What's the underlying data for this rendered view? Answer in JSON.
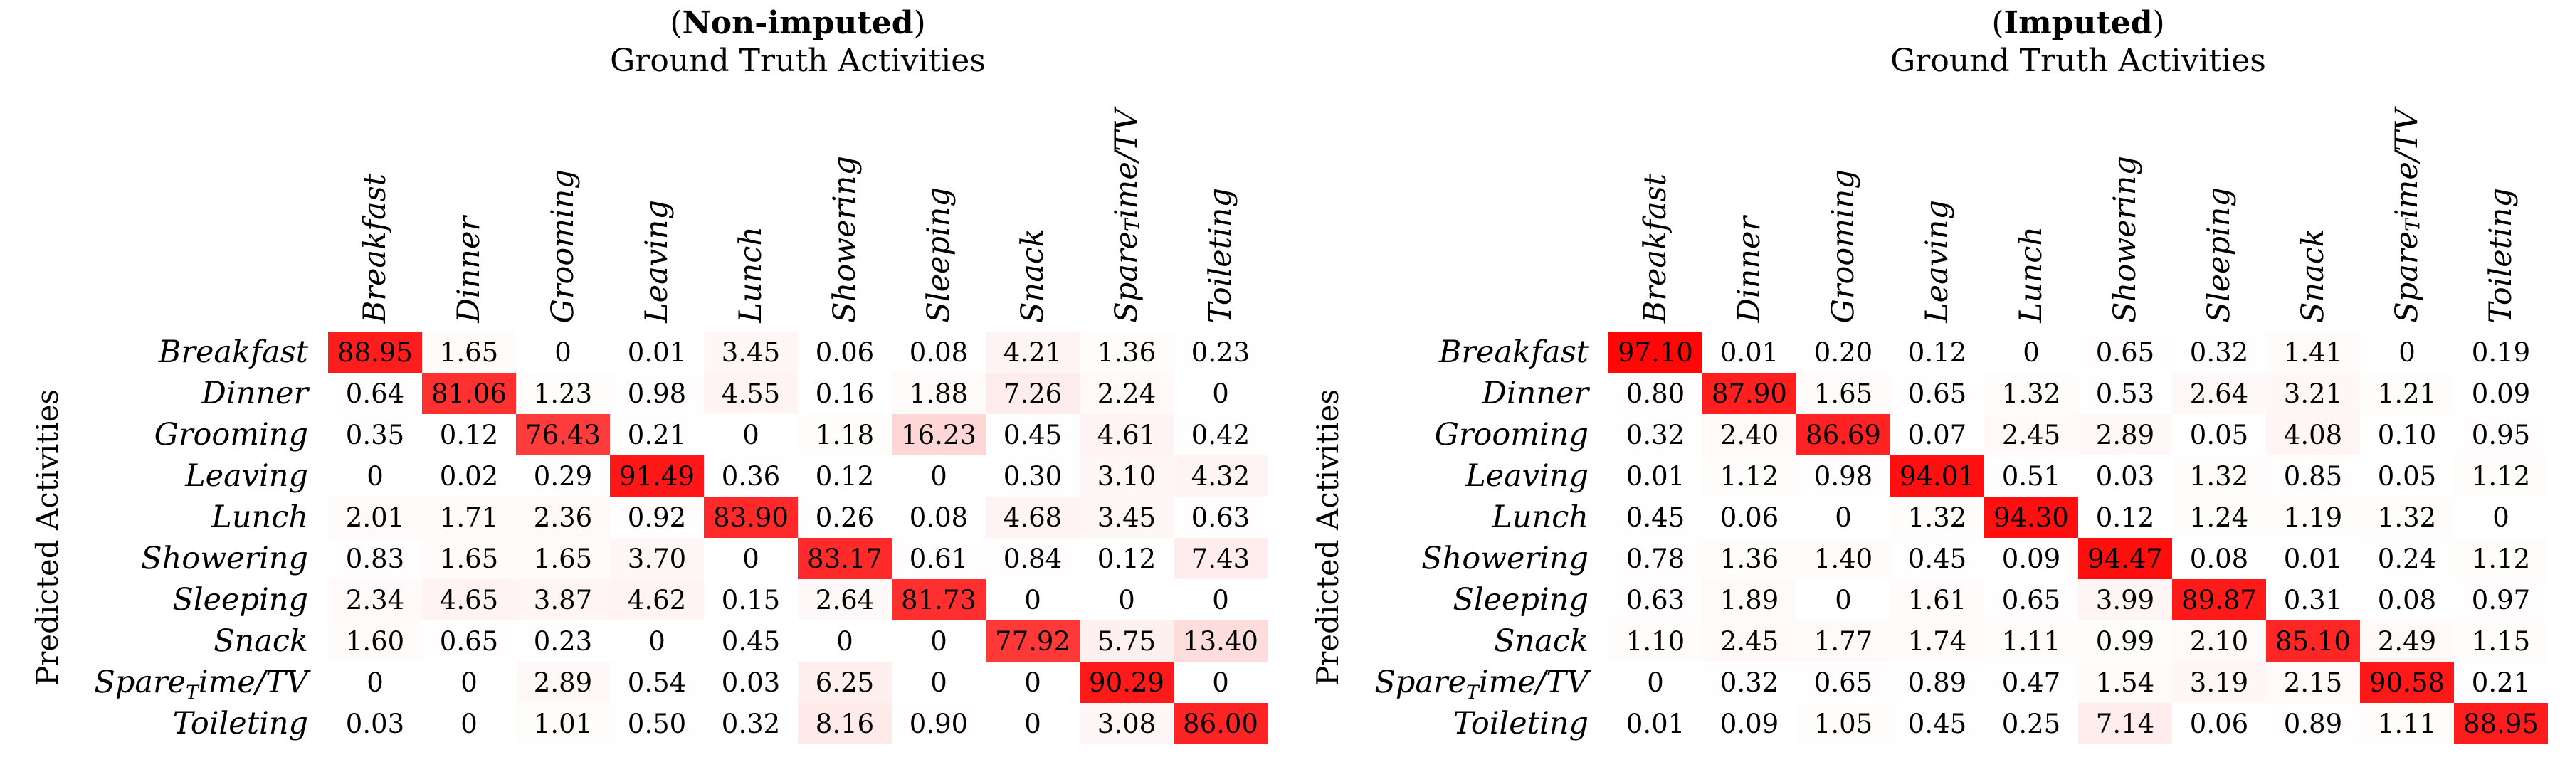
{
  "figure": {
    "background": "#FFFFFF",
    "text_color": "#000000"
  },
  "colors": {
    "heat_low": "#FFFFFF",
    "heat_high": "#FF0000"
  },
  "chart_data": [
    {
      "type": "heatmap",
      "title": "Non-imputed",
      "title_wrapped": {
        "open": "(",
        "close": ")"
      },
      "xlabel": "Ground Truth Activities",
      "ylabel": "Predicted Activities",
      "value_range": [
        0,
        100
      ],
      "colormap": {
        "low": "#FFFFFF",
        "high": "#FF0000"
      },
      "legend": "none",
      "grid": "off",
      "categories": [
        "Breakfast",
        "Dinner",
        "Grooming",
        "Leaving",
        "Lunch",
        "Showering",
        "Sleeping",
        "Snack",
        "Spare_{T}ime/TV",
        "Toileting"
      ],
      "values": [
        [
          "88.95",
          "1.65",
          "0",
          "0.01",
          "3.45",
          "0.06",
          "0.08",
          "4.21",
          "1.36",
          "0.23"
        ],
        [
          "0.64",
          "81.06",
          "1.23",
          "0.98",
          "4.55",
          "0.16",
          "1.88",
          "7.26",
          "2.24",
          "0"
        ],
        [
          "0.35",
          "0.12",
          "76.43",
          "0.21",
          "0",
          "1.18",
          "16.23",
          "0.45",
          "4.61",
          "0.42"
        ],
        [
          "0",
          "0.02",
          "0.29",
          "91.49",
          "0.36",
          "0.12",
          "0",
          "0.30",
          "3.10",
          "4.32"
        ],
        [
          "2.01",
          "1.71",
          "2.36",
          "0.92",
          "83.90",
          "0.26",
          "0.08",
          "4.68",
          "3.45",
          "0.63"
        ],
        [
          "0.83",
          "1.65",
          "1.65",
          "3.70",
          "0",
          "83.17",
          "0.61",
          "0.84",
          "0.12",
          "7.43"
        ],
        [
          "2.34",
          "4.65",
          "3.87",
          "4.62",
          "0.15",
          "2.64",
          "81.73",
          "0",
          "0",
          "0"
        ],
        [
          "1.60",
          "0.65",
          "0.23",
          "0",
          "0.45",
          "0",
          "0",
          "77.92",
          "5.75",
          "13.40"
        ],
        [
          "0",
          "0",
          "2.89",
          "0.54",
          "0.03",
          "6.25",
          "0",
          "0",
          "90.29",
          "0"
        ],
        [
          "0.03",
          "0",
          "1.01",
          "0.50",
          "0.32",
          "8.16",
          "0.90",
          "0",
          "3.08",
          "86.00"
        ]
      ]
    },
    {
      "type": "heatmap",
      "title": "Imputed",
      "title_wrapped": {
        "open": "(",
        "close": ")"
      },
      "xlabel": "Ground Truth Activities",
      "ylabel": "Predicted Activities",
      "value_range": [
        0,
        100
      ],
      "colormap": {
        "low": "#FFFFFF",
        "high": "#FF0000"
      },
      "legend": "none",
      "grid": "off",
      "categories": [
        "Breakfast",
        "Dinner",
        "Grooming",
        "Leaving",
        "Lunch",
        "Showering",
        "Sleeping",
        "Snack",
        "Spare_{T}ime/TV",
        "Toileting"
      ],
      "values": [
        [
          "97.10",
          "0.01",
          "0.20",
          "0.12",
          "0",
          "0.65",
          "0.32",
          "1.41",
          "0",
          "0.19"
        ],
        [
          "0.80",
          "87.90",
          "1.65",
          "0.65",
          "1.32",
          "0.53",
          "2.64",
          "3.21",
          "1.21",
          "0.09"
        ],
        [
          "0.32",
          "2.40",
          "86.69",
          "0.07",
          "2.45",
          "2.89",
          "0.05",
          "4.08",
          "0.10",
          "0.95"
        ],
        [
          "0.01",
          "1.12",
          "0.98",
          "94.01",
          "0.51",
          "0.03",
          "1.32",
          "0.85",
          "0.05",
          "1.12"
        ],
        [
          "0.45",
          "0.06",
          "0",
          "1.32",
          "94.30",
          "0.12",
          "1.24",
          "1.19",
          "1.32",
          "0"
        ],
        [
          "0.78",
          "1.36",
          "1.40",
          "0.45",
          "0.09",
          "94.47",
          "0.08",
          "0.01",
          "0.24",
          "1.12"
        ],
        [
          "0.63",
          "1.89",
          "0",
          "1.61",
          "0.65",
          "3.99",
          "89.87",
          "0.31",
          "0.08",
          "0.97"
        ],
        [
          "1.10",
          "2.45",
          "1.77",
          "1.74",
          "1.11",
          "0.99",
          "2.10",
          "85.10",
          "2.49",
          "1.15"
        ],
        [
          "0",
          "0.32",
          "0.65",
          "0.89",
          "0.47",
          "1.54",
          "3.19",
          "2.15",
          "90.58",
          "0.21"
        ],
        [
          "0.01",
          "0.09",
          "1.05",
          "0.45",
          "0.25",
          "7.14",
          "0.06",
          "0.89",
          "1.11",
          "88.95"
        ]
      ]
    }
  ]
}
